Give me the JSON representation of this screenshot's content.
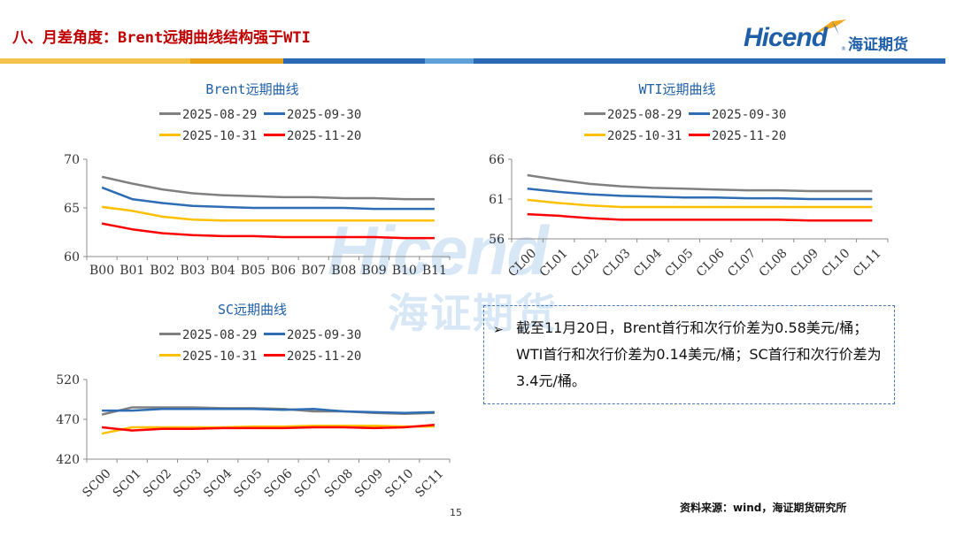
{
  "header": {
    "title": "八、月差角度：Brent远期曲线结构强于WTI",
    "logo_en": "Hicend",
    "logo_cn": "海证期货",
    "logo_mark": "®"
  },
  "brand_colors": {
    "title_red": "#c00000",
    "brand_blue": "#1f5fa8",
    "stripe": [
      "#f3c24a",
      "#e8a21a",
      "#2c69b4",
      "#5fa0d8",
      "#2c69b4"
    ]
  },
  "watermark": {
    "en": "Hicend",
    "cn": "海证期货"
  },
  "chart_data": [
    {
      "id": "brent",
      "type": "line",
      "title": "Brent远期曲线",
      "categories": [
        "B00",
        "B01",
        "B02",
        "B03",
        "B04",
        "B05",
        "B06",
        "B07",
        "B08",
        "B09",
        "B10",
        "B11"
      ],
      "ylim": [
        60,
        70
      ],
      "yticks": [
        60,
        65,
        70
      ],
      "xlabel_rotation": 0,
      "grid": false,
      "legend_position": "top",
      "series": [
        {
          "name": "2025-08-29",
          "color": "#808080",
          "values": [
            68.2,
            67.5,
            66.9,
            66.5,
            66.3,
            66.2,
            66.1,
            66.1,
            66.0,
            66.0,
            65.9,
            65.9
          ]
        },
        {
          "name": "2025-09-30",
          "color": "#2e6db4",
          "values": [
            67.1,
            65.9,
            65.5,
            65.2,
            65.1,
            65.0,
            65.0,
            65.0,
            65.0,
            64.9,
            64.9,
            64.9
          ]
        },
        {
          "name": "2025-10-31",
          "color": "#ffc000",
          "values": [
            65.1,
            64.7,
            64.1,
            63.8,
            63.7,
            63.7,
            63.7,
            63.7,
            63.7,
            63.7,
            63.7,
            63.7
          ]
        },
        {
          "name": "2025-11-20",
          "color": "#ff0000",
          "values": [
            63.4,
            62.8,
            62.4,
            62.2,
            62.1,
            62.1,
            62.0,
            62.0,
            62.0,
            62.0,
            61.9,
            61.9
          ]
        }
      ]
    },
    {
      "id": "wti",
      "type": "line",
      "title": "WTI远期曲线",
      "categories": [
        "CL00",
        "CL01",
        "CL02",
        "CL03",
        "CL04",
        "CL05",
        "CL06",
        "CL07",
        "CL08",
        "CL09",
        "CL10",
        "CL11"
      ],
      "ylim": [
        56,
        66
      ],
      "yticks": [
        56,
        61,
        66
      ],
      "xlabel_rotation": -45,
      "grid": false,
      "legend_position": "top",
      "series": [
        {
          "name": "2025-08-29",
          "color": "#808080",
          "values": [
            64.0,
            63.4,
            62.9,
            62.6,
            62.4,
            62.3,
            62.2,
            62.1,
            62.1,
            62.0,
            62.0,
            62.0
          ]
        },
        {
          "name": "2025-09-30",
          "color": "#2e6db4",
          "values": [
            62.3,
            61.9,
            61.6,
            61.4,
            61.3,
            61.2,
            61.2,
            61.1,
            61.1,
            61.0,
            61.0,
            61.0
          ]
        },
        {
          "name": "2025-10-31",
          "color": "#ffc000",
          "values": [
            60.9,
            60.5,
            60.2,
            60.0,
            60.0,
            60.0,
            60.0,
            60.0,
            60.0,
            60.0,
            60.0,
            60.0
          ]
        },
        {
          "name": "2025-11-20",
          "color": "#ff0000",
          "values": [
            59.1,
            58.9,
            58.6,
            58.4,
            58.4,
            58.4,
            58.4,
            58.4,
            58.4,
            58.3,
            58.3,
            58.3
          ]
        }
      ]
    },
    {
      "id": "sc",
      "type": "line",
      "title": "SC远期曲线",
      "categories": [
        "SC00",
        "SC01",
        "SC02",
        "SC03",
        "SC04",
        "SC05",
        "SC06",
        "SC07",
        "SC08",
        "SC09",
        "SC10",
        "SC11"
      ],
      "ylim": [
        420,
        520
      ],
      "yticks": [
        420,
        470,
        520
      ],
      "xlabel_rotation": -45,
      "grid": false,
      "legend_position": "top",
      "series": [
        {
          "name": "2025-08-29",
          "color": "#808080",
          "values": [
            476,
            485,
            485,
            485,
            484,
            484,
            483,
            480,
            480,
            478,
            477,
            478
          ]
        },
        {
          "name": "2025-09-30",
          "color": "#2e6db4",
          "values": [
            481,
            481,
            483,
            483,
            483,
            483,
            482,
            483,
            480,
            479,
            478,
            479
          ]
        },
        {
          "name": "2025-10-31",
          "color": "#ffc000",
          "values": [
            452,
            460,
            460,
            460,
            460,
            461,
            461,
            462,
            462,
            462,
            461,
            461
          ]
        },
        {
          "name": "2025-11-20",
          "color": "#ff0000",
          "values": [
            460,
            456,
            458,
            458,
            459,
            459,
            459,
            460,
            460,
            459,
            460,
            463
          ]
        }
      ]
    }
  ],
  "note": {
    "bullet": "➢",
    "text": "截至11月20日，Brent首行和次行价差为0.58美元/桶；WTI首行和次行价差为0.14美元/桶；SC首行和次行价差为3.4元/桶。"
  },
  "footer": {
    "source": "资料来源：wind，海证期货研究所",
    "page": "15"
  }
}
